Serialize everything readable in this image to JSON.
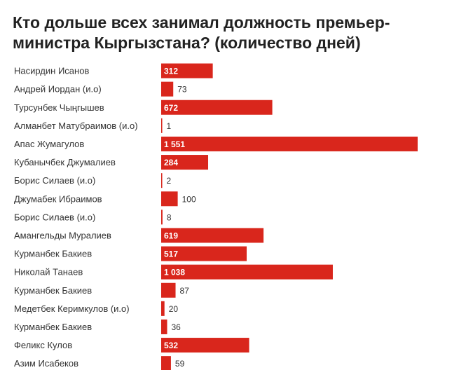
{
  "title": "Кто дольше всех занимал должность премьер-министра Кыргызстана? (количество дней)",
  "colors": {
    "bar": "#d9261c",
    "text": "#222222"
  },
  "chart_data": {
    "type": "bar",
    "orientation": "horizontal",
    "title": "Кто дольше всех занимал должность премьер-министра Кыргызстана? (количество дней)",
    "categories": [
      "Насирдин Исанов",
      "Андрей Иордан (и.о)",
      "Турсунбек Чыңгышев",
      "Алманбет Матубраимов (и.о)",
      "Апас Жумагулов",
      "Кубанычбек Джумалиев",
      "Борис Силаев (и.о)",
      "Джумабек Ибраимов",
      "Борис Силаев (и.о)",
      "Амангельды Муралиев",
      "Курманбек Бакиев",
      "Николай Танаев",
      "Курманбек Бакиев",
      "Медетбек Керимкулов (и.о)",
      "Курманбек Бакиев",
      "Феликс Кулов",
      "Азим Исабеков"
    ],
    "values": [
      312,
      73,
      672,
      1,
      1551,
      284,
      2,
      100,
      8,
      619,
      517,
      1038,
      87,
      20,
      36,
      532,
      59
    ],
    "value_labels": [
      "312",
      "73",
      "672",
      "1",
      "1 551",
      "284",
      "2",
      "100",
      "8",
      "619",
      "517",
      "1 038",
      "87",
      "20",
      "36",
      "532",
      "59"
    ],
    "xlim": [
      0,
      1551
    ],
    "grid": false,
    "legend": "none"
  }
}
